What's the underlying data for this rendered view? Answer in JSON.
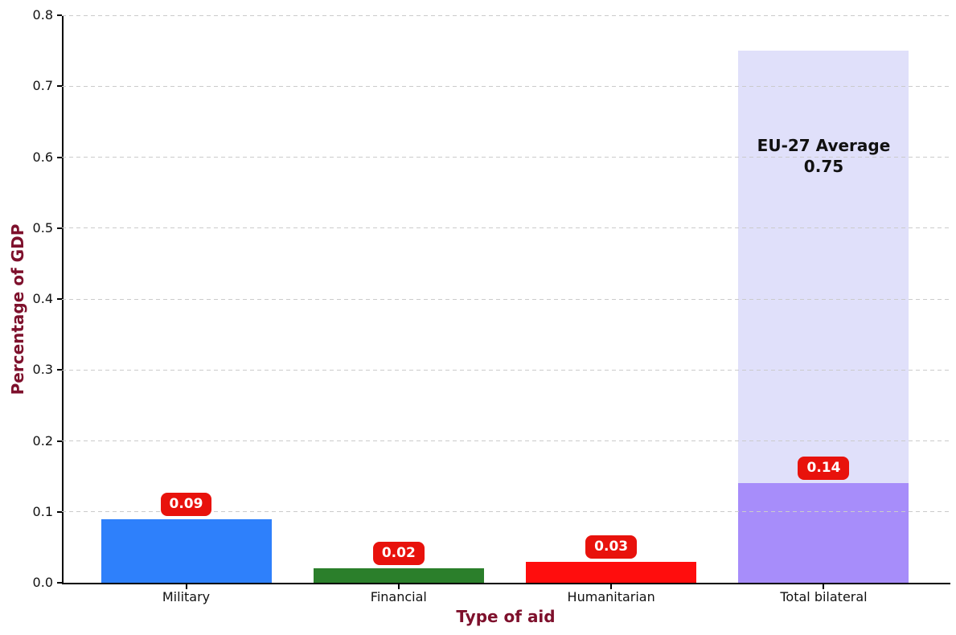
{
  "chart_data": {
    "type": "bar",
    "title": "",
    "xlabel": "Type of aid",
    "ylabel": "Percentage of GDP",
    "categories": [
      "Military",
      "Financial",
      "Humanitarian",
      "Total bilateral"
    ],
    "values": [
      0.09,
      0.02,
      0.03,
      0.14
    ],
    "value_labels": [
      "0.09",
      "0.02",
      "0.03",
      "0.14"
    ],
    "bar_colors": [
      "#2E80FB",
      "#2B7F2B",
      "#FF0D0D",
      "#A78DFA"
    ],
    "reference_bar": {
      "category": "Total bilateral",
      "value": 0.75,
      "color": "#E0E0FA",
      "label_line1": "EU-27 Average",
      "label_line2": "0.75"
    },
    "ylim": [
      0,
      0.8
    ],
    "ytick_step": 0.1,
    "yticks": [
      "0.0",
      "0.1",
      "0.2",
      "0.3",
      "0.4",
      "0.5",
      "0.6",
      "0.7",
      "0.8"
    ],
    "grid": {
      "axis": "y",
      "style": "dashed",
      "color": "#CBCBCB",
      "above_bars": true
    },
    "legend_position": "none",
    "styles": {
      "axis_label_color": "#7E102C",
      "tick_label_color": "#111111",
      "badge_bg": "#E8120C",
      "badge_text_color": "#FFFFFF",
      "annotation_color": "#111111",
      "spine_color": "#000000"
    }
  }
}
